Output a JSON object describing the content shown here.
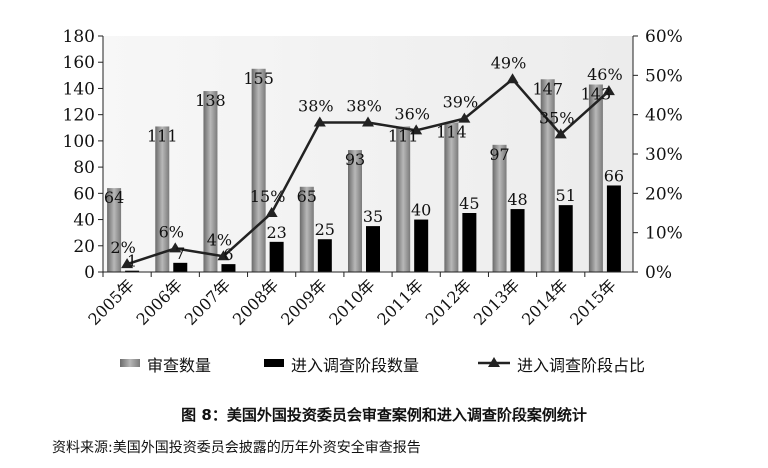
{
  "caption": "图 8：美国外国投资委员会审查案例和进入调查阶段案例统计",
  "source": "资料来源:美国外国投资委员会披露的历年外资安全审查报告",
  "chart_data": {
    "type": "bar",
    "categories": [
      "2005年",
      "2006年",
      "2007年",
      "2008年",
      "2009年",
      "2010年",
      "2011年",
      "2012年",
      "2013年",
      "2014年",
      "2015年"
    ],
    "series": [
      {
        "name": "审查数量",
        "type": "bar",
        "axis": "left",
        "values": [
          64,
          111,
          138,
          155,
          65,
          93,
          111,
          114,
          97,
          147,
          143
        ],
        "color": "#8c8c8c"
      },
      {
        "name": "进入调查阶段数量",
        "type": "bar",
        "axis": "left",
        "values": [
          1,
          7,
          6,
          23,
          25,
          35,
          40,
          45,
          48,
          51,
          66
        ],
        "color": "#000000"
      },
      {
        "name": "进入调查阶段占比",
        "type": "line",
        "axis": "right",
        "values": [
          2,
          6,
          4,
          15,
          38,
          38,
          36,
          39,
          49,
          35,
          46
        ],
        "unit": "%",
        "color": "#222222"
      }
    ],
    "left_axis": {
      "min": 0,
      "max": 180,
      "step": 20
    },
    "right_axis": {
      "min": 0,
      "max": 60,
      "step": 10,
      "format": "%"
    },
    "grid": false,
    "legend": "bottom"
  }
}
